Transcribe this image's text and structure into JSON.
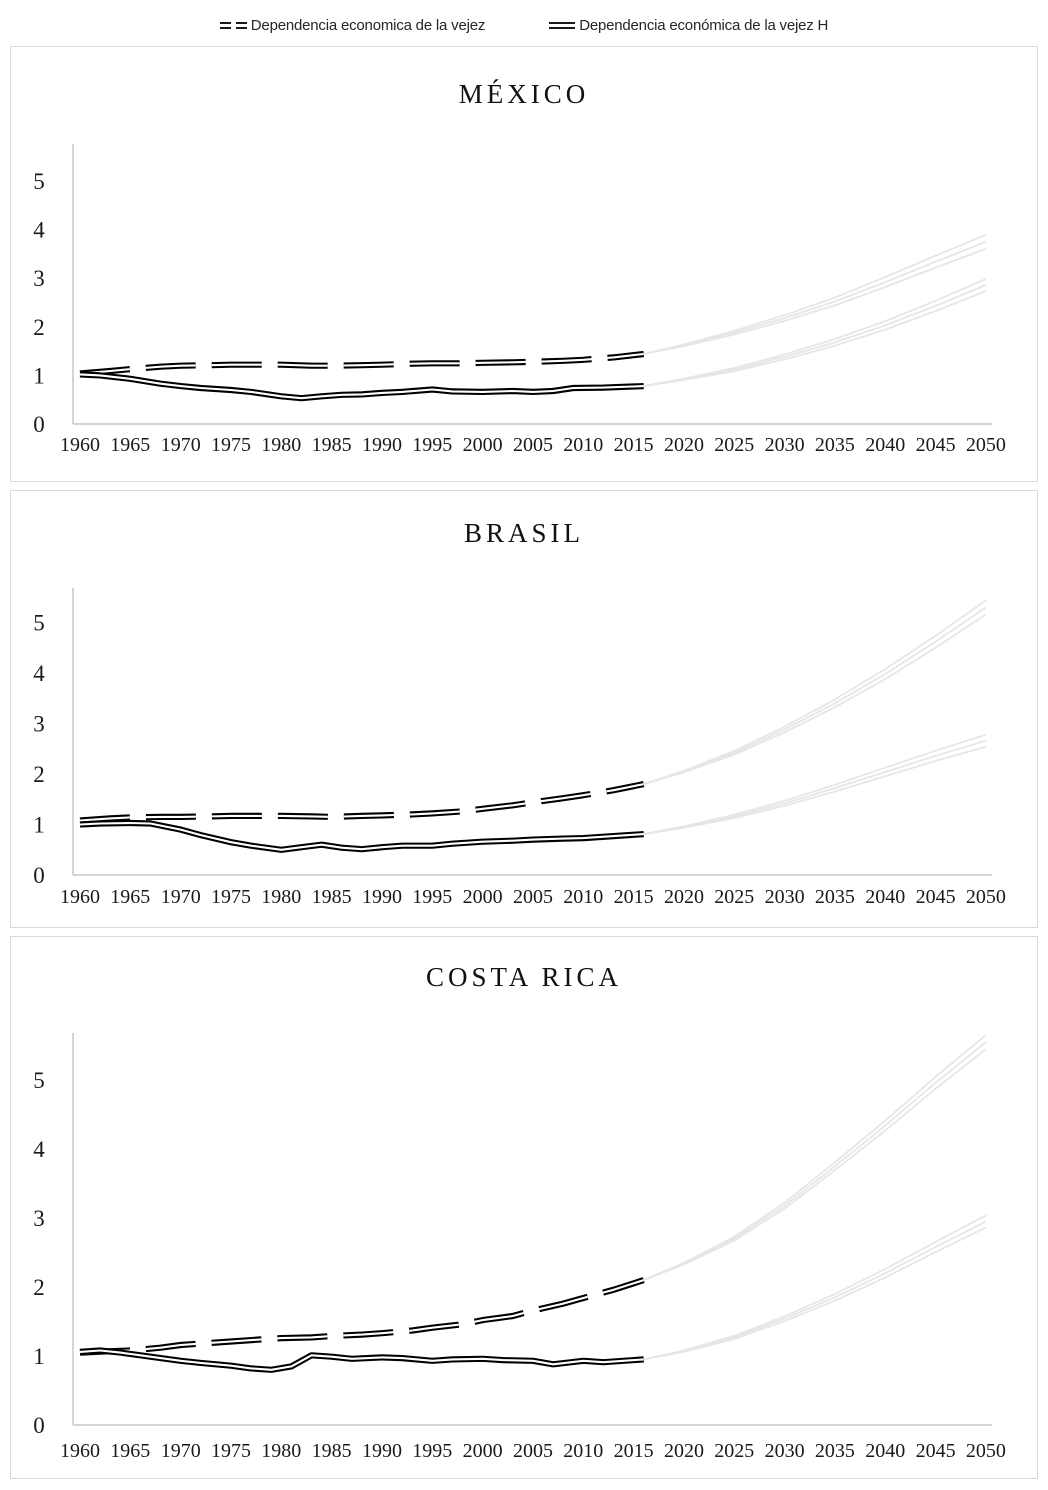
{
  "legend": {
    "items": [
      {
        "label": "Dependencia economica de la vejez",
        "sample": "double-dashed-line"
      },
      {
        "label": "Dependencia económica de la vejez H",
        "sample": "double-solid-line"
      }
    ]
  },
  "colors": {
    "historical_line": "#000000",
    "projection_line": "#e6e6e6",
    "axis_line": "#c6c6c6",
    "panel_border": "#d9d9d9",
    "tick_text": "#1a1a1a"
  },
  "axis": {
    "x_ticks": [
      1960,
      1965,
      1970,
      1975,
      1980,
      1985,
      1990,
      1995,
      2000,
      2005,
      2010,
      2015,
      2020,
      2025,
      2030,
      2035,
      2040,
      2045,
      2050
    ],
    "y_ticks": [
      0,
      1,
      2,
      3,
      4,
      5
    ]
  },
  "charts": [
    {
      "id": "mexico",
      "chart_data": {
        "type": "line",
        "title": "MÉXICO",
        "x_range": [
          1960,
          2050
        ],
        "ylim": [
          0,
          5.6
        ],
        "projection_start": 2016,
        "legend_position": "top",
        "grid": false,
        "series": [
          {
            "name": "Dependencia economica de la vejez",
            "line_style": "double-dashed",
            "historical": [
              [
                1960,
                1.04
              ],
              [
                1963,
                1.09
              ],
              [
                1965,
                1.13
              ],
              [
                1968,
                1.18
              ],
              [
                1970,
                1.2
              ],
              [
                1973,
                1.21
              ],
              [
                1975,
                1.22
              ],
              [
                1978,
                1.22
              ],
              [
                1980,
                1.22
              ],
              [
                1983,
                1.2
              ],
              [
                1985,
                1.2
              ],
              [
                1988,
                1.21
              ],
              [
                1990,
                1.22
              ],
              [
                1993,
                1.24
              ],
              [
                1995,
                1.25
              ],
              [
                1998,
                1.25
              ],
              [
                2000,
                1.26
              ],
              [
                2003,
                1.27
              ],
              [
                2005,
                1.28
              ],
              [
                2008,
                1.3
              ],
              [
                2010,
                1.32
              ],
              [
                2013,
                1.37
              ],
              [
                2016,
                1.44
              ]
            ],
            "projection": [
              [
                2016,
                1.44
              ],
              [
                2020,
                1.62
              ],
              [
                2025,
                1.88
              ],
              [
                2030,
                2.18
              ],
              [
                2035,
                2.52
              ],
              [
                2040,
                2.92
              ],
              [
                2045,
                3.34
              ],
              [
                2050,
                3.75
              ]
            ]
          },
          {
            "name": "Dependencia económica de la vejez H",
            "line_style": "double-solid",
            "historical": [
              [
                1960,
                1.02
              ],
              [
                1962,
                1.0
              ],
              [
                1965,
                0.93
              ],
              [
                1968,
                0.83
              ],
              [
                1970,
                0.78
              ],
              [
                1972,
                0.74
              ],
              [
                1975,
                0.7
              ],
              [
                1977,
                0.66
              ],
              [
                1980,
                0.57
              ],
              [
                1982,
                0.53
              ],
              [
                1984,
                0.57
              ],
              [
                1986,
                0.6
              ],
              [
                1988,
                0.61
              ],
              [
                1990,
                0.64
              ],
              [
                1992,
                0.66
              ],
              [
                1995,
                0.71
              ],
              [
                1997,
                0.67
              ],
              [
                2000,
                0.66
              ],
              [
                2003,
                0.68
              ],
              [
                2005,
                0.66
              ],
              [
                2007,
                0.68
              ],
              [
                2009,
                0.74
              ],
              [
                2012,
                0.75
              ],
              [
                2016,
                0.78
              ]
            ],
            "projection": [
              [
                2016,
                0.78
              ],
              [
                2020,
                0.92
              ],
              [
                2025,
                1.12
              ],
              [
                2030,
                1.38
              ],
              [
                2035,
                1.68
              ],
              [
                2040,
                2.03
              ],
              [
                2045,
                2.43
              ],
              [
                2050,
                2.86
              ]
            ]
          }
        ]
      }
    },
    {
      "id": "brasil",
      "chart_data": {
        "type": "line",
        "title": "BRASIL",
        "x_range": [
          1960,
          2050
        ],
        "ylim": [
          0,
          5.6
        ],
        "projection_start": 2016,
        "legend_position": "top",
        "grid": false,
        "series": [
          {
            "name": "Dependencia economica de la vejez",
            "line_style": "double-dashed",
            "historical": [
              [
                1960,
                1.08
              ],
              [
                1963,
                1.12
              ],
              [
                1965,
                1.14
              ],
              [
                1968,
                1.15
              ],
              [
                1970,
                1.15
              ],
              [
                1973,
                1.16
              ],
              [
                1975,
                1.17
              ],
              [
                1978,
                1.17
              ],
              [
                1980,
                1.17
              ],
              [
                1983,
                1.16
              ],
              [
                1985,
                1.15
              ],
              [
                1988,
                1.17
              ],
              [
                1990,
                1.18
              ],
              [
                1993,
                1.2
              ],
              [
                1995,
                1.22
              ],
              [
                1998,
                1.26
              ],
              [
                2000,
                1.31
              ],
              [
                2003,
                1.38
              ],
              [
                2005,
                1.44
              ],
              [
                2008,
                1.52
              ],
              [
                2010,
                1.58
              ],
              [
                2013,
                1.68
              ],
              [
                2016,
                1.8
              ]
            ],
            "projection": [
              [
                2016,
                1.8
              ],
              [
                2020,
                2.05
              ],
              [
                2025,
                2.42
              ],
              [
                2030,
                2.88
              ],
              [
                2035,
                3.4
              ],
              [
                2040,
                3.98
              ],
              [
                2045,
                4.62
              ],
              [
                2050,
                5.3
              ]
            ]
          },
          {
            "name": "Dependencia económica de la vejez H",
            "line_style": "double-solid",
            "historical": [
              [
                1960,
                1.0
              ],
              [
                1962,
                1.02
              ],
              [
                1965,
                1.03
              ],
              [
                1967,
                1.02
              ],
              [
                1970,
                0.9
              ],
              [
                1972,
                0.79
              ],
              [
                1975,
                0.65
              ],
              [
                1977,
                0.58
              ],
              [
                1980,
                0.5
              ],
              [
                1982,
                0.55
              ],
              [
                1984,
                0.6
              ],
              [
                1986,
                0.54
              ],
              [
                1988,
                0.51
              ],
              [
                1990,
                0.55
              ],
              [
                1992,
                0.58
              ],
              [
                1995,
                0.58
              ],
              [
                1997,
                0.62
              ],
              [
                2000,
                0.66
              ],
              [
                2003,
                0.68
              ],
              [
                2005,
                0.7
              ],
              [
                2008,
                0.72
              ],
              [
                2010,
                0.73
              ],
              [
                2013,
                0.77
              ],
              [
                2016,
                0.81
              ]
            ],
            "projection": [
              [
                2016,
                0.81
              ],
              [
                2020,
                0.95
              ],
              [
                2025,
                1.16
              ],
              [
                2030,
                1.42
              ],
              [
                2035,
                1.72
              ],
              [
                2040,
                2.04
              ],
              [
                2045,
                2.36
              ],
              [
                2050,
                2.66
              ]
            ]
          }
        ]
      }
    },
    {
      "id": "costa-rica",
      "chart_data": {
        "type": "line",
        "title": "COSTA RICA",
        "x_range": [
          1960,
          2050
        ],
        "ylim": [
          0,
          5.7
        ],
        "projection_start": 2016,
        "legend_position": "top",
        "grid": false,
        "series": [
          {
            "name": "Dependencia economica de la vejez",
            "line_style": "double-dashed",
            "historical": [
              [
                1960,
                1.05
              ],
              [
                1963,
                1.07
              ],
              [
                1965,
                1.08
              ],
              [
                1968,
                1.12
              ],
              [
                1970,
                1.16
              ],
              [
                1973,
                1.19
              ],
              [
                1975,
                1.21
              ],
              [
                1978,
                1.24
              ],
              [
                1980,
                1.26
              ],
              [
                1983,
                1.27
              ],
              [
                1985,
                1.29
              ],
              [
                1988,
                1.31
              ],
              [
                1990,
                1.33
              ],
              [
                1993,
                1.37
              ],
              [
                1995,
                1.41
              ],
              [
                1998,
                1.46
              ],
              [
                2000,
                1.52
              ],
              [
                2003,
                1.58
              ],
              [
                2005,
                1.66
              ],
              [
                2008,
                1.76
              ],
              [
                2010,
                1.84
              ],
              [
                2013,
                1.96
              ],
              [
                2016,
                2.1
              ]
            ],
            "projection": [
              [
                2016,
                2.1
              ],
              [
                2020,
                2.34
              ],
              [
                2025,
                2.7
              ],
              [
                2030,
                3.18
              ],
              [
                2035,
                3.75
              ],
              [
                2040,
                4.34
              ],
              [
                2045,
                4.96
              ],
              [
                2050,
                5.55
              ]
            ]
          },
          {
            "name": "Dependencia económica de la vejez H",
            "line_style": "double-solid",
            "historical": [
              [
                1960,
                1.06
              ],
              [
                1962,
                1.08
              ],
              [
                1964,
                1.05
              ],
              [
                1966,
                1.01
              ],
              [
                1968,
                0.97
              ],
              [
                1970,
                0.93
              ],
              [
                1972,
                0.9
              ],
              [
                1975,
                0.86
              ],
              [
                1977,
                0.82
              ],
              [
                1979,
                0.8
              ],
              [
                1981,
                0.85
              ],
              [
                1983,
                1.01
              ],
              [
                1985,
                0.99
              ],
              [
                1987,
                0.96
              ],
              [
                1990,
                0.98
              ],
              [
                1992,
                0.97
              ],
              [
                1995,
                0.93
              ],
              [
                1997,
                0.95
              ],
              [
                2000,
                0.96
              ],
              [
                2002,
                0.94
              ],
              [
                2005,
                0.93
              ],
              [
                2007,
                0.88
              ],
              [
                2010,
                0.93
              ],
              [
                2012,
                0.91
              ],
              [
                2016,
                0.95
              ]
            ],
            "projection": [
              [
                2016,
                0.95
              ],
              [
                2020,
                1.07
              ],
              [
                2025,
                1.27
              ],
              [
                2030,
                1.54
              ],
              [
                2035,
                1.85
              ],
              [
                2040,
                2.2
              ],
              [
                2045,
                2.58
              ],
              [
                2050,
                2.95
              ]
            ]
          }
        ]
      }
    }
  ]
}
